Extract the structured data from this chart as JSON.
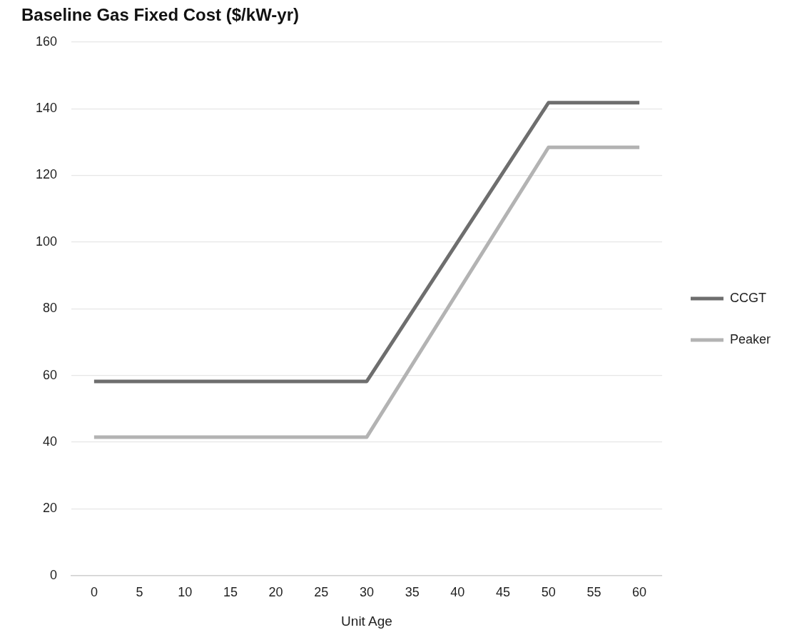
{
  "chart_data": {
    "type": "line",
    "title": "Baseline Gas Fixed Cost ($/kW-yr)",
    "xlabel": "Unit Age",
    "x": [
      0,
      30,
      50,
      60
    ],
    "series": [
      {
        "name": "CCGT",
        "color": "#6e6e6e",
        "values": [
          58.2,
          58.2,
          141.8,
          141.8
        ]
      },
      {
        "name": "Peaker",
        "color": "#b3b3b3",
        "values": [
          41.5,
          41.5,
          128.4,
          128.4
        ]
      }
    ],
    "xlim": [
      -2.5,
      62.5
    ],
    "xticks": [
      0,
      5,
      10,
      15,
      20,
      25,
      30,
      35,
      40,
      45,
      50,
      55,
      60
    ],
    "ylim": [
      0,
      160
    ],
    "yticks": [
      0,
      20,
      40,
      60,
      80,
      100,
      120,
      140,
      160
    ],
    "grid": "y",
    "legend": "right",
    "marker": "none",
    "line_style": "solid"
  }
}
